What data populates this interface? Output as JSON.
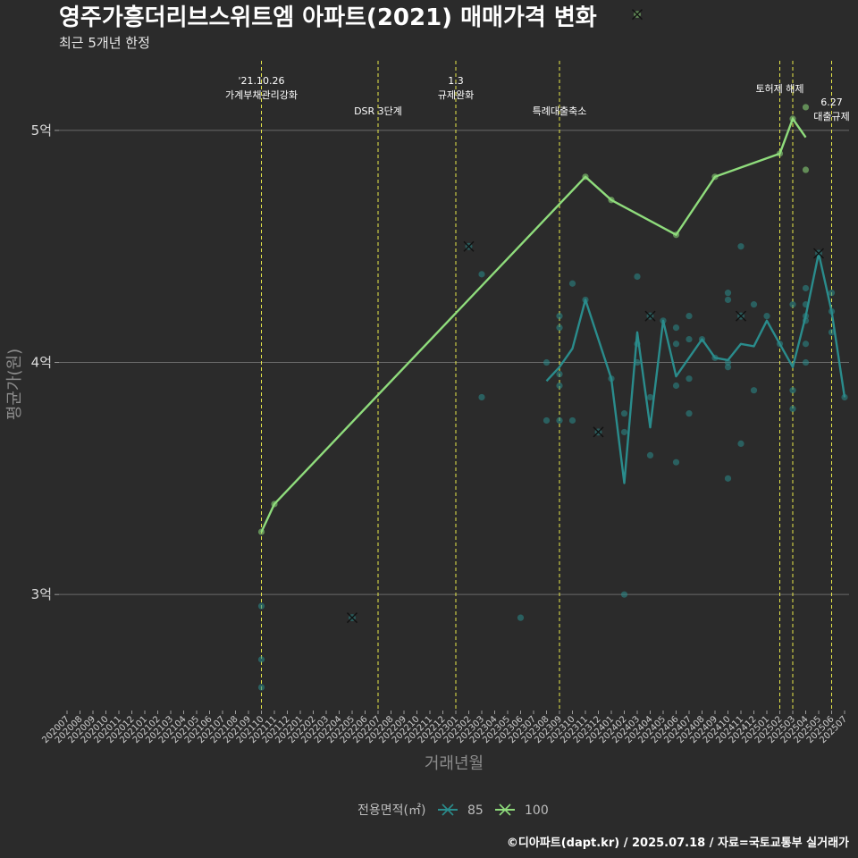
{
  "chart_data": {
    "type": "line",
    "title": "영주가흥더리브스위트엠 아파트(2021) 매매가격 변화",
    "subtitle": "최근 5개년 한정",
    "xlabel": "거래년월",
    "ylabel": "평균가(원)",
    "y_unit": "억",
    "ylim": [
      2.5,
      5.3
    ],
    "yticks": [
      {
        "value": 3,
        "label": "3억"
      },
      {
        "value": 4,
        "label": "4억"
      },
      {
        "value": 5,
        "label": "5억"
      }
    ],
    "x_categories": [
      "202007",
      "202008",
      "202009",
      "202010",
      "202011",
      "202012",
      "202101",
      "202102",
      "202103",
      "202104",
      "202105",
      "202106",
      "202107",
      "202108",
      "202109",
      "202110",
      "202111",
      "202112",
      "202201",
      "202202",
      "202203",
      "202204",
      "202205",
      "202206",
      "202207",
      "202208",
      "202209",
      "202210",
      "202211",
      "202212",
      "202301",
      "202302",
      "202303",
      "202304",
      "202305",
      "202306",
      "202307",
      "202308",
      "202309",
      "202310",
      "202311",
      "202312",
      "202401",
      "202402",
      "202403",
      "202404",
      "202405",
      "202406",
      "202407",
      "202408",
      "202409",
      "202410",
      "202411",
      "202412",
      "202501",
      "202502",
      "202503",
      "202504",
      "202505",
      "202506",
      "202507"
    ],
    "grid": true,
    "legend": {
      "title": "전용면적(㎡)",
      "placement": "bottom",
      "items": [
        {
          "label": "85",
          "color": "#2a8c8c"
        },
        {
          "label": "100",
          "color": "#8fdc7c"
        }
      ]
    },
    "series": [
      {
        "name": "85",
        "color": "#2a8c8c",
        "line": [
          [
            "202308",
            3.92
          ],
          [
            "202309",
            3.98
          ],
          [
            "202310",
            4.06
          ],
          [
            "202311",
            4.27
          ],
          [
            "202401",
            3.93
          ],
          [
            "202402",
            3.48
          ],
          [
            "202403",
            4.13
          ],
          [
            "202404",
            3.72
          ],
          [
            "202405",
            4.18
          ],
          [
            "202406",
            3.94
          ],
          [
            "202407",
            4.02
          ],
          [
            "202408",
            4.1
          ],
          [
            "202409",
            4.02
          ],
          [
            "202410",
            4.01
          ],
          [
            "202411",
            4.08
          ],
          [
            "202412",
            4.07
          ],
          [
            "202501",
            4.18
          ],
          [
            "202502",
            4.08
          ],
          [
            "202503",
            3.98
          ],
          [
            "202504",
            4.2
          ],
          [
            "202505",
            4.47
          ],
          [
            "202506",
            4.22
          ],
          [
            "202507",
            3.85
          ]
        ],
        "points": [
          [
            "202110",
            2.95
          ],
          [
            "202110",
            2.72
          ],
          [
            "202110",
            2.6
          ],
          [
            "202303",
            4.38
          ],
          [
            "202303",
            3.85
          ],
          [
            "202306",
            2.9
          ],
          [
            "202308",
            4.0
          ],
          [
            "202308",
            3.75
          ],
          [
            "202309",
            4.2
          ],
          [
            "202309",
            4.15
          ],
          [
            "202309",
            3.95
          ],
          [
            "202309",
            3.9
          ],
          [
            "202309",
            3.75
          ],
          [
            "202310",
            4.34
          ],
          [
            "202310",
            3.75
          ],
          [
            "202311",
            4.27
          ],
          [
            "202401",
            3.93
          ],
          [
            "202402",
            3.78
          ],
          [
            "202402",
            3.7
          ],
          [
            "202402",
            3.0
          ],
          [
            "202403",
            4.37
          ],
          [
            "202403",
            4.08
          ],
          [
            "202403",
            4.0
          ],
          [
            "202404",
            3.85
          ],
          [
            "202404",
            3.6
          ],
          [
            "202405",
            4.18
          ],
          [
            "202406",
            4.15
          ],
          [
            "202406",
            4.08
          ],
          [
            "202406",
            3.9
          ],
          [
            "202406",
            3.57
          ],
          [
            "202407",
            4.2
          ],
          [
            "202407",
            4.1
          ],
          [
            "202407",
            3.93
          ],
          [
            "202407",
            3.78
          ],
          [
            "202408",
            4.1
          ],
          [
            "202409",
            4.02
          ],
          [
            "202410",
            4.3
          ],
          [
            "202410",
            4.27
          ],
          [
            "202410",
            4.0
          ],
          [
            "202410",
            3.98
          ],
          [
            "202410",
            3.5
          ],
          [
            "202411",
            4.5
          ],
          [
            "202411",
            3.65
          ],
          [
            "202412",
            4.25
          ],
          [
            "202412",
            3.88
          ],
          [
            "202501",
            4.2
          ],
          [
            "202502",
            4.08
          ],
          [
            "202503",
            4.25
          ],
          [
            "202503",
            3.88
          ],
          [
            "202503",
            3.8
          ],
          [
            "202504",
            4.32
          ],
          [
            "202504",
            4.25
          ],
          [
            "202504",
            4.2
          ],
          [
            "202504",
            4.18
          ],
          [
            "202504",
            4.08
          ],
          [
            "202504",
            4.0
          ],
          [
            "202506",
            4.3
          ],
          [
            "202506",
            4.22
          ],
          [
            "202506",
            4.13
          ],
          [
            "202507",
            3.85
          ]
        ],
        "single_deals": [
          [
            "202205",
            2.9
          ],
          [
            "202302",
            4.5
          ],
          [
            "202312",
            3.7
          ],
          [
            "202404",
            4.2
          ],
          [
            "202411",
            4.2
          ],
          [
            "202505",
            4.47
          ]
        ]
      },
      {
        "name": "100",
        "color": "#8fdc7c",
        "line": [
          [
            "202110",
            3.27
          ],
          [
            "202111",
            3.39
          ],
          [
            "202311",
            4.8
          ],
          [
            "202401",
            4.7
          ],
          [
            "202406",
            4.55
          ],
          [
            "202409",
            4.8
          ],
          [
            "202502",
            4.9
          ],
          [
            "202503",
            5.05
          ],
          [
            "202504",
            4.97
          ]
        ],
        "points": [
          [
            "202110",
            3.27
          ],
          [
            "202111",
            3.39
          ],
          [
            "202311",
            4.8
          ],
          [
            "202401",
            4.7
          ],
          [
            "202406",
            4.55
          ],
          [
            "202409",
            4.8
          ],
          [
            "202502",
            4.9
          ],
          [
            "202503",
            5.05
          ],
          [
            "202504",
            5.1
          ],
          [
            "202504",
            4.83
          ]
        ],
        "single_deals": [
          [
            "202403",
            5.5
          ]
        ]
      }
    ],
    "events": [
      {
        "x": "202110",
        "line1": "'21.10.26",
        "line2": "가계부채관리강화",
        "row": "top"
      },
      {
        "x": "202207",
        "line1": "DSR 3단계",
        "line2": "",
        "row": "low"
      },
      {
        "x": "202301",
        "line1": "1.3",
        "line2": "규제완화",
        "row": "top"
      },
      {
        "x": "202309",
        "line1": "특례대출축소",
        "line2": "",
        "row": "low"
      },
      {
        "x": "202502",
        "line1": "토허제 해제",
        "line2": "",
        "row": "mid"
      },
      {
        "x": "202503",
        "line1": "",
        "line2": "",
        "row": "none"
      },
      {
        "x": "202506",
        "line1": "6.27",
        "line2": "대출규제",
        "row": "low"
      }
    ],
    "caption": "©디아파트(dapt.kr) / 2025.07.18 / 자료=국토교통부 실거래가"
  }
}
